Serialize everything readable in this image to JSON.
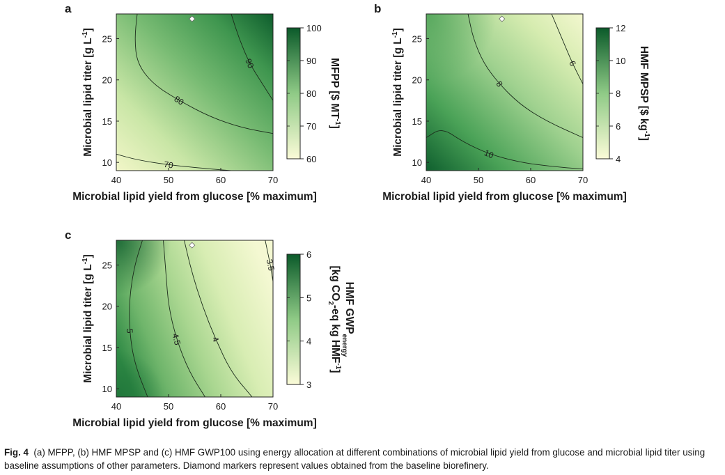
{
  "figure": {
    "caption_label": "Fig. 4",
    "caption_text": "(a) MFPP, (b) HMF MPSP and (c) HMF GWP100 using energy allocation at different combinations of microbial lipid yield from glucose and microbial lipid titer using baseline assumptions of other parameters. Diamond markers represent values obtained from the baseline biorefinery."
  },
  "colors": {
    "low": "#fbfbd8",
    "mid": "#8fca86",
    "high": "#0b5a2a"
  },
  "chart_data": [
    {
      "panel": "a",
      "type": "heatmap",
      "xlabel": "Microbial lipid yield from glucose [% maximum]",
      "ylabel": "Microbial lipid titer [g L-1]",
      "xlim": [
        40,
        70
      ],
      "ylim": [
        9,
        28
      ],
      "xticks": [
        40,
        50,
        60,
        70
      ],
      "yticks": [
        10,
        15,
        20,
        25
      ],
      "colorbar": {
        "label": "MFPP [$ MT-1]",
        "min": 60,
        "max": 100,
        "ticks": [
          60,
          70,
          80,
          90,
          100
        ]
      },
      "contours": [
        {
          "level": "70",
          "points": [
            [
              40,
              11
            ],
            [
              44,
              10.3
            ],
            [
              50,
              9.7
            ],
            [
              58,
              9.2
            ],
            [
              62,
              9.0
            ]
          ]
        },
        {
          "level": "80",
          "points": [
            [
              44,
              28
            ],
            [
              43.5,
              25
            ],
            [
              44,
              22
            ],
            [
              47,
              19.5
            ],
            [
              52,
              17.5
            ],
            [
              58,
              15.5
            ],
            [
              64,
              14.2
            ],
            [
              70,
              13.5
            ]
          ]
        },
        {
          "level": "90",
          "points": [
            [
              62,
              28
            ],
            [
              63.5,
              25
            ],
            [
              65.5,
              22
            ],
            [
              68,
              19.5
            ],
            [
              70,
              17.5
            ]
          ]
        }
      ],
      "baseline": {
        "x": 54.5,
        "y": 27.4
      }
    },
    {
      "panel": "b",
      "type": "heatmap",
      "xlabel": "Microbial lipid yield from glucose [% maximum]",
      "ylabel": "Microbial lipid titer [g L-1]",
      "xlim": [
        40,
        70
      ],
      "ylim": [
        9,
        28
      ],
      "xticks": [
        40,
        50,
        60,
        70
      ],
      "yticks": [
        10,
        15,
        20,
        25
      ],
      "colorbar": {
        "label": "HMF MPSP [$ kg-1]",
        "min": 4,
        "max": 12,
        "ticks": [
          4,
          6,
          8,
          10,
          12
        ]
      },
      "contours": [
        {
          "level": "6",
          "points": [
            [
              64,
              28
            ],
            [
              66,
              25
            ],
            [
              68,
              22
            ],
            [
              70,
              19.5
            ]
          ]
        },
        {
          "level": "8",
          "points": [
            [
              48,
              28
            ],
            [
              49,
              25
            ],
            [
              51,
              22
            ],
            [
              54,
              19.5
            ],
            [
              58,
              17
            ],
            [
              63,
              15
            ],
            [
              70,
              13
            ]
          ]
        },
        {
          "level": "10",
          "points": [
            [
              40,
              13
            ],
            [
              43,
              14.2
            ],
            [
              47,
              12.5
            ],
            [
              52,
              11
            ],
            [
              58,
              10
            ],
            [
              64,
              9.5
            ],
            [
              70,
              9.2
            ]
          ]
        }
      ],
      "baseline": {
        "x": 54.5,
        "y": 27.4
      }
    },
    {
      "panel": "c",
      "type": "heatmap",
      "xlabel": "Microbial lipid yield from glucose [% maximum]",
      "ylabel": "Microbial lipid titer [g L-1]",
      "xlim": [
        40,
        70
      ],
      "ylim": [
        9,
        28
      ],
      "xticks": [
        40,
        50,
        60,
        70
      ],
      "yticks": [
        10,
        15,
        20,
        25
      ],
      "colorbar": {
        "label": "HMF GWPenergy [kg CO2-eq kg HMF-1]",
        "min": 3,
        "max": 6,
        "ticks": [
          3,
          4,
          5,
          6
        ]
      },
      "contours": [
        {
          "level": "5",
          "points": [
            [
              45,
              28
            ],
            [
              43.5,
              25
            ],
            [
              42.5,
              21
            ],
            [
              42.5,
              17
            ],
            [
              43.5,
              13
            ],
            [
              46,
              9
            ]
          ]
        },
        {
          "level": "4.5",
          "points": [
            [
              49,
              28
            ],
            [
              49.5,
              24
            ],
            [
              50,
              20
            ],
            [
              51.5,
              16
            ],
            [
              54,
              12
            ],
            [
              57,
              9
            ]
          ]
        },
        {
          "level": "4",
          "points": [
            [
              53,
              28
            ],
            [
              54.5,
              24
            ],
            [
              56.5,
              20
            ],
            [
              59,
              16
            ],
            [
              62,
              12
            ],
            [
              66,
              9
            ]
          ]
        },
        {
          "level": "3.5",
          "points": [
            [
              68.5,
              28
            ],
            [
              69.5,
              25
            ],
            [
              70,
              23
            ]
          ]
        }
      ],
      "baseline": {
        "x": 54.5,
        "y": 27.4
      }
    }
  ],
  "panels_text": [
    {
      "letter": "a",
      "xlabel": "Microbial lipid yield from glucose [% maximum]",
      "ylabel_main": "Microbial lipid titer [g L",
      "ylabel_sup": "-1",
      "ylabel_end": "]",
      "cbar_main": "MFPP [$ MT",
      "cbar_sup": "-1",
      "cbar_end": "]"
    },
    {
      "letter": "b",
      "xlabel": "Microbial lipid yield from glucose [% maximum]",
      "ylabel_main": "Microbial lipid titer [g L",
      "ylabel_sup": "-1",
      "ylabel_end": "]",
      "cbar_main": "HMF MPSP [$ kg",
      "cbar_sup": "-1",
      "cbar_end": "]"
    },
    {
      "letter": "c",
      "xlabel": "Microbial lipid yield from glucose [% maximum]",
      "ylabel_main": "Microbial lipid titer [g L",
      "ylabel_sup": "-1",
      "ylabel_end": "]",
      "cbar_line1_main": "HMF GWP",
      "cbar_line1_sub": "energy",
      "cbar_line2_a": "[kg CO",
      "cbar_line2_sub": "2",
      "cbar_line2_b": "-eq kg HMF",
      "cbar_line2_sup": "-1",
      "cbar_line2_c": "]"
    }
  ]
}
